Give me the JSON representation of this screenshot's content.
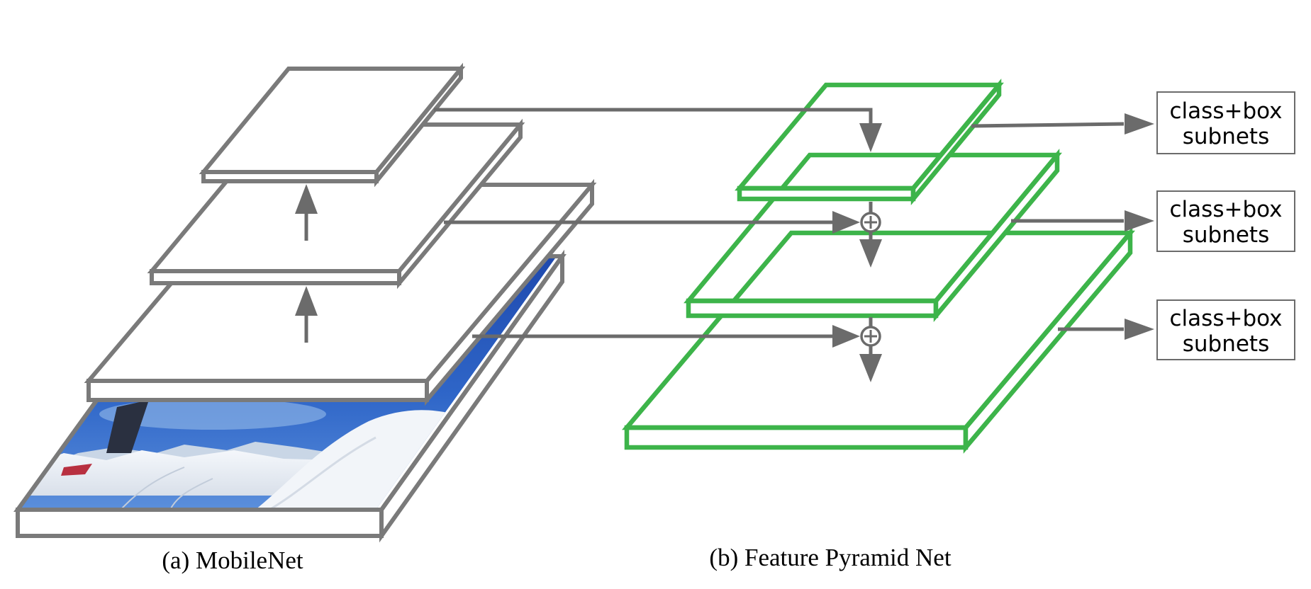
{
  "captions": {
    "backbone": "(a) MobileNet",
    "pyramid": "(b) Feature Pyramid Net"
  },
  "subnets": [
    {
      "line1": "class+box",
      "line2": "subnets"
    },
    {
      "line1": "class+box",
      "line2": "subnets"
    },
    {
      "line1": "class+box",
      "line2": "subnets"
    }
  ],
  "icons": {
    "merge": "circled-plus-icon",
    "input": "ski-photo-image"
  },
  "colors": {
    "backbone_layer": "#7a7a7a",
    "pyramid_layer": "#3db44a",
    "arrow": "#6b6b6b"
  }
}
